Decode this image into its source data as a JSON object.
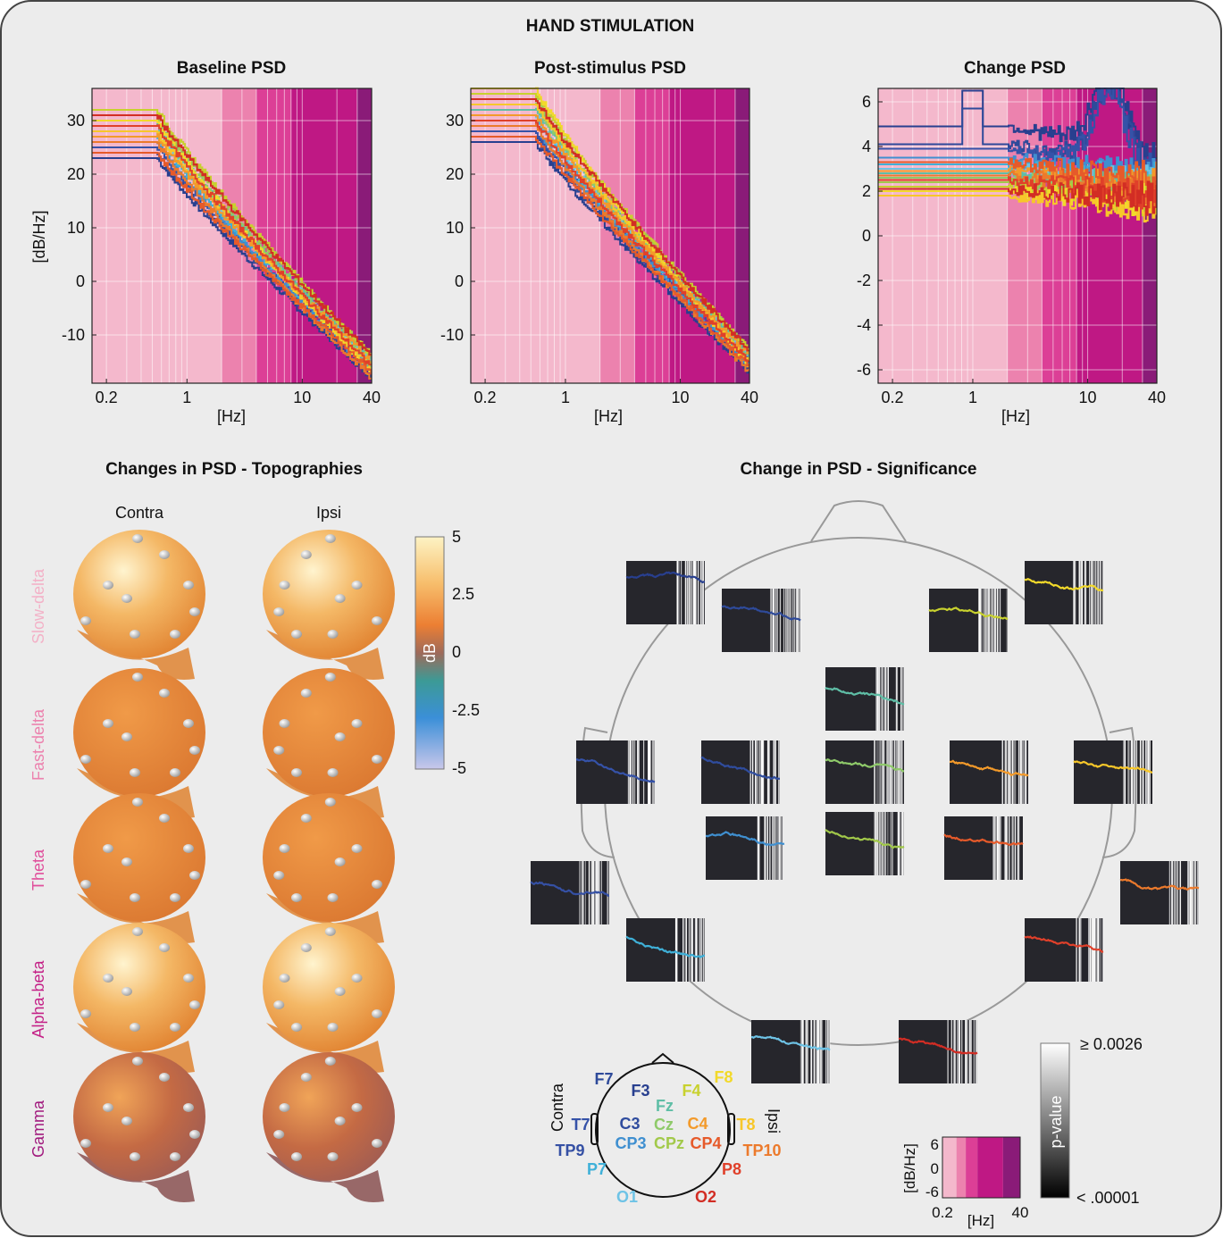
{
  "figure": {
    "title": "HAND STIMULATION",
    "background": "#ececec"
  },
  "psd_panels": {
    "baseline": {
      "title": "Baseline PSD",
      "ylabel": "[dB/Hz]",
      "xlabel": "[Hz]",
      "yticks": [
        "30",
        "20",
        "10",
        "0",
        "-10"
      ],
      "xticks": [
        "0.2",
        "1",
        "10",
        "40"
      ]
    },
    "post": {
      "title": "Post-stimulus PSD",
      "xlabel": "[Hz]",
      "yticks": [
        "30",
        "20",
        "10",
        "0",
        "-10"
      ],
      "xticks": [
        "0.2",
        "1",
        "10",
        "40"
      ]
    },
    "change": {
      "title": "Change PSD",
      "xlabel": "[Hz]",
      "yticks": [
        "6",
        "4",
        "2",
        "0",
        "-2",
        "-4",
        "-6"
      ],
      "xticks": [
        "0.2",
        "1",
        "10",
        "40"
      ]
    }
  },
  "chart_data": [
    {
      "type": "line",
      "title": "Baseline PSD",
      "xlabel": "[Hz]",
      "ylabel": "[dB/Hz]",
      "xscale": "log",
      "xlim": [
        0.15,
        40
      ],
      "ylim": [
        -19,
        36
      ],
      "grid": true,
      "band_edges_hz": [
        0.15,
        2,
        4,
        8,
        30,
        40
      ],
      "band_colors": [
        "#f4b8cc",
        "#ec82ae",
        "#dc3f96",
        "#bf1884",
        "#8a1b78"
      ],
      "series_start_values": [
        23,
        24,
        25,
        26,
        27,
        28,
        29,
        30,
        31,
        32,
        30,
        28,
        27,
        26,
        24,
        29,
        31
      ],
      "series_end_values": [
        -18,
        -17,
        -16,
        -17,
        -16,
        -15,
        -15,
        -16,
        -14,
        -14,
        -17,
        -16,
        -15,
        -18,
        -17,
        -16,
        -14
      ]
    },
    {
      "type": "line",
      "title": "Post-stimulus PSD",
      "xlabel": "[Hz]",
      "xscale": "log",
      "xlim": [
        0.15,
        40
      ],
      "ylim": [
        -19,
        36
      ],
      "grid": true,
      "band_edges_hz": [
        0.15,
        2,
        4,
        8,
        30,
        40
      ],
      "band_colors": [
        "#f4b8cc",
        "#ec82ae",
        "#dc3f96",
        "#bf1884",
        "#8a1b78"
      ],
      "series_start_values": [
        26,
        27,
        28,
        29,
        30,
        31,
        32,
        33,
        34,
        35,
        36,
        33,
        31,
        29,
        27,
        30,
        34
      ],
      "series_end_values": [
        -17,
        -16,
        -15,
        -16,
        -15,
        -14,
        -14,
        -15,
        -13,
        -13,
        -16,
        -15,
        -14,
        -17,
        -16,
        -15,
        -13
      ]
    },
    {
      "type": "line",
      "title": "Change PSD",
      "xlabel": "[Hz]",
      "xscale": "log",
      "xlim": [
        0.15,
        40
      ],
      "ylim": [
        -6.6,
        6.6
      ],
      "grid": true,
      "band_edges_hz": [
        0.15,
        2,
        4,
        8,
        30,
        40
      ],
      "band_colors": [
        "#f4b8cc",
        "#ec82ae",
        "#dc3f96",
        "#bf1884",
        "#8a1b78"
      ],
      "series_start_values": [
        4.9,
        4.1,
        3.9,
        3.5,
        3.2,
        3.0,
        2.8,
        2.6,
        2.4,
        2.2,
        2.0,
        1.8,
        2.9,
        2.7,
        3.3,
        2.5,
        2.1
      ],
      "peak_value_blue": 6.2,
      "peak_hz": 15
    },
    {
      "type": "table",
      "title": "Changes in PSD - Topographies",
      "columns": [
        "Contra",
        "Ipsi"
      ],
      "rows": [
        "Slow-delta",
        "Fast-delta",
        "Theta",
        "Alpha-beta",
        "Gamma"
      ],
      "colorbar": {
        "label": "dB",
        "ticks": [
          "5",
          "2.5",
          "0",
          "-2.5",
          "-5"
        ],
        "range": [
          -5,
          5
        ]
      },
      "cell_levels": [
        [
          4.3,
          3.6
        ],
        [
          2.9,
          2.8
        ],
        [
          3.0,
          2.6
        ],
        [
          4.1,
          3.3
        ],
        [
          1.7,
          1.3
        ]
      ]
    },
    {
      "type": "line",
      "title": "Change in PSD - Significance",
      "channels": [
        "F7",
        "F3",
        "Fz",
        "F4",
        "F8",
        "T7",
        "C3",
        "Cz",
        "C4",
        "T8",
        "TP9",
        "CP3",
        "CPz",
        "CP4",
        "TP10",
        "P7",
        "P8",
        "O1",
        "O2"
      ],
      "pvalue_colorbar": {
        "label": "p-value",
        "top": "≥ 0.0026",
        "bottom": "< .00001"
      },
      "mini_axes": {
        "ylabel": "[dB/Hz]",
        "yticks": [
          "6",
          "0",
          "-6"
        ],
        "xlabel": "[Hz]",
        "xticks": [
          "0.2",
          "40"
        ]
      }
    }
  ],
  "topographies": {
    "title": "Changes in PSD - Topographies",
    "col_contra": "Contra",
    "col_ipsi": "Ipsi",
    "rows": [
      {
        "label": "Slow-delta",
        "color": "#f3b1c7"
      },
      {
        "label": "Fast-delta",
        "color": "#ec82ae"
      },
      {
        "label": "Theta",
        "color": "#e0509c"
      },
      {
        "label": "Alpha-beta",
        "color": "#c42187"
      },
      {
        "label": "Gamma",
        "color": "#a11a7e"
      }
    ],
    "colorbar": {
      "label": "dB",
      "t5": "5",
      "t25": "2.5",
      "t0": "0",
      "tm25": "-2.5",
      "tm5": "-5"
    }
  },
  "significance": {
    "title": "Change in PSD - Significance",
    "pvalue_label": "p-value",
    "pvalue_top": "≥ 0.0026",
    "pvalue_bottom": "< .00001",
    "legend_ylabel": "[dB/Hz]",
    "legend_y6": "6",
    "legend_y0": "0",
    "legend_ym6": "-6",
    "legend_x1": "0.2",
    "legend_x2": "40",
    "legend_xlabel": "[Hz]",
    "contra": "Contra",
    "ipsi": "Ipsi",
    "channels": [
      {
        "name": "F7",
        "color": "#2e4a9a"
      },
      {
        "name": "F3",
        "color": "#283f8f"
      },
      {
        "name": "Fz",
        "color": "#5fbea6"
      },
      {
        "name": "F4",
        "color": "#c8d12e"
      },
      {
        "name": "F8",
        "color": "#f2d92a"
      },
      {
        "name": "T7",
        "color": "#3552a8"
      },
      {
        "name": "C3",
        "color": "#2f4c9e"
      },
      {
        "name": "Cz",
        "color": "#8fca6a"
      },
      {
        "name": "C4",
        "color": "#f39a2a"
      },
      {
        "name": "T8",
        "color": "#f7c72a"
      },
      {
        "name": "TP9",
        "color": "#3550a4"
      },
      {
        "name": "CP3",
        "color": "#3f8fd0"
      },
      {
        "name": "CPz",
        "color": "#a2c94a"
      },
      {
        "name": "CP4",
        "color": "#e65a2a"
      },
      {
        "name": "TP10",
        "color": "#ec7a2c"
      },
      {
        "name": "P7",
        "color": "#3fb0d8"
      },
      {
        "name": "P8",
        "color": "#e0402a"
      },
      {
        "name": "O1",
        "color": "#6ec3e6"
      },
      {
        "name": "O2",
        "color": "#d22d24"
      }
    ]
  }
}
